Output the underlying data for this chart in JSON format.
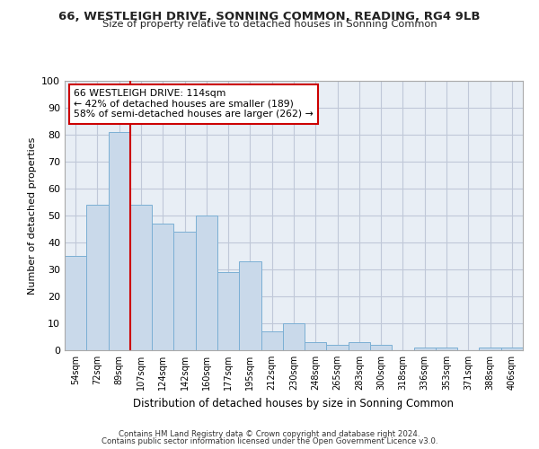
{
  "title": "66, WESTLEIGH DRIVE, SONNING COMMON, READING, RG4 9LB",
  "subtitle": "Size of property relative to detached houses in Sonning Common",
  "xlabel": "Distribution of detached houses by size in Sonning Common",
  "ylabel": "Number of detached properties",
  "categories": [
    "54sqm",
    "72sqm",
    "89sqm",
    "107sqm",
    "124sqm",
    "142sqm",
    "160sqm",
    "177sqm",
    "195sqm",
    "212sqm",
    "230sqm",
    "248sqm",
    "265sqm",
    "283sqm",
    "300sqm",
    "318sqm",
    "336sqm",
    "353sqm",
    "371sqm",
    "388sqm",
    "406sqm"
  ],
  "values": [
    35,
    54,
    81,
    54,
    47,
    44,
    50,
    29,
    33,
    7,
    10,
    3,
    2,
    3,
    2,
    0,
    1,
    1,
    0,
    1,
    1
  ],
  "bar_color": "#c9d9ea",
  "bar_edge_color": "#7bafd4",
  "grid_color": "#c0c8d8",
  "background_color": "#e8eef5",
  "vline_color": "#cc0000",
  "annotation_text": "66 WESTLEIGH DRIVE: 114sqm\n← 42% of detached houses are smaller (189)\n58% of semi-detached houses are larger (262) →",
  "annotation_box_color": "#ffffff",
  "annotation_box_edge": "#cc0000",
  "footer1": "Contains HM Land Registry data © Crown copyright and database right 2024.",
  "footer2": "Contains public sector information licensed under the Open Government Licence v3.0.",
  "ylim": [
    0,
    100
  ],
  "yticks": [
    0,
    10,
    20,
    30,
    40,
    50,
    60,
    70,
    80,
    90,
    100
  ]
}
